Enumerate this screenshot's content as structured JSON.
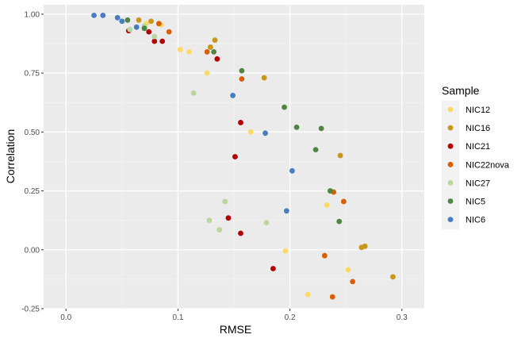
{
  "chart_data": {
    "type": "scatter",
    "xlabel": "RMSE",
    "ylabel": "Correlation",
    "xlim": [
      -0.02,
      0.32
    ],
    "ylim": [
      -0.25,
      1.04
    ],
    "x_ticks": [
      0.0,
      0.1,
      0.2,
      0.3
    ],
    "x_tick_labels": [
      "0.0",
      "0.1",
      "0.2",
      "0.3"
    ],
    "y_ticks": [
      -0.25,
      0.0,
      0.25,
      0.5,
      0.75,
      1.0
    ],
    "y_tick_labels": [
      "-0.25",
      "0.00",
      "0.25",
      "0.50",
      "0.75",
      "1.00"
    ],
    "grid": true,
    "legend": {
      "title": "Sample",
      "position": "right"
    },
    "series": [
      {
        "name": "NIC12",
        "color": "#FFD966",
        "points": [
          [
            0.102,
            0.85
          ],
          [
            0.11,
            0.84
          ],
          [
            0.126,
            0.75
          ],
          [
            0.165,
            0.5
          ],
          [
            0.196,
            -0.005
          ],
          [
            0.233,
            0.19
          ],
          [
            0.252,
            -0.085
          ],
          [
            0.216,
            -0.19
          ],
          [
            0.072,
            0.96
          ],
          [
            0.085,
            0.955
          ]
        ]
      },
      {
        "name": "NIC16",
        "color": "#C9961A",
        "points": [
          [
            0.065,
            0.975
          ],
          [
            0.076,
            0.97
          ],
          [
            0.083,
            0.96
          ],
          [
            0.129,
            0.86
          ],
          [
            0.133,
            0.89
          ],
          [
            0.177,
            0.73
          ],
          [
            0.245,
            0.4
          ],
          [
            0.264,
            0.01
          ],
          [
            0.267,
            0.015
          ],
          [
            0.292,
            -0.115
          ]
        ]
      },
      {
        "name": "NIC21",
        "color": "#B30000",
        "points": [
          [
            0.056,
            0.93
          ],
          [
            0.074,
            0.925
          ],
          [
            0.079,
            0.885
          ],
          [
            0.086,
            0.885
          ],
          [
            0.135,
            0.81
          ],
          [
            0.156,
            0.54
          ],
          [
            0.151,
            0.395
          ],
          [
            0.145,
            0.135
          ],
          [
            0.156,
            0.07
          ],
          [
            0.185,
            -0.08
          ]
        ]
      },
      {
        "name": "NIC22nova",
        "color": "#D95F02",
        "points": [
          [
            0.083,
            0.96
          ],
          [
            0.092,
            0.925
          ],
          [
            0.126,
            0.84
          ],
          [
            0.157,
            0.725
          ],
          [
            0.239,
            0.245
          ],
          [
            0.248,
            0.205
          ],
          [
            0.231,
            -0.025
          ],
          [
            0.256,
            -0.135
          ],
          [
            0.238,
            -0.2
          ]
        ]
      },
      {
        "name": "NIC27",
        "color": "#B8D69E",
        "points": [
          [
            0.057,
            0.935
          ],
          [
            0.07,
            0.95
          ],
          [
            0.079,
            0.905
          ],
          [
            0.114,
            0.665
          ],
          [
            0.142,
            0.205
          ],
          [
            0.128,
            0.125
          ],
          [
            0.137,
            0.085
          ],
          [
            0.179,
            0.115
          ]
        ]
      },
      {
        "name": "NIC5",
        "color": "#4E8540",
        "points": [
          [
            0.055,
            0.975
          ],
          [
            0.07,
            0.94
          ],
          [
            0.132,
            0.84
          ],
          [
            0.157,
            0.76
          ],
          [
            0.195,
            0.605
          ],
          [
            0.206,
            0.52
          ],
          [
            0.228,
            0.515
          ],
          [
            0.223,
            0.425
          ],
          [
            0.236,
            0.25
          ],
          [
            0.244,
            0.12
          ]
        ]
      },
      {
        "name": "NIC6",
        "color": "#4A7CC2",
        "points": [
          [
            0.025,
            0.995
          ],
          [
            0.033,
            0.995
          ],
          [
            0.046,
            0.985
          ],
          [
            0.05,
            0.97
          ],
          [
            0.063,
            0.945
          ],
          [
            0.149,
            0.655
          ],
          [
            0.178,
            0.495
          ],
          [
            0.202,
            0.335
          ],
          [
            0.197,
            0.165
          ]
        ]
      }
    ]
  }
}
